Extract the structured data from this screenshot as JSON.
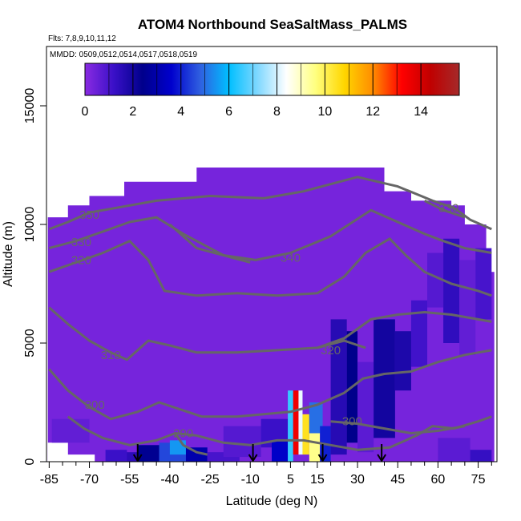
{
  "chart_data": {
    "type": "heatmap",
    "title": "ATOM4 Northbound SeaSaltMass_PALMS",
    "subtitle_flights": "Flts: 7,8,9,10,11,12",
    "subtitle_dates": "MMDD: 0509,0512,0514,0517,0518,0519",
    "xlabel": "Latitude (deg N)",
    "ylabel": "Altitude (m)",
    "x_ticks": [
      -85,
      -70,
      -55,
      -40,
      -25,
      -10,
      5,
      15,
      30,
      45,
      60,
      75
    ],
    "x_tick_labels": [
      "-85",
      "-70",
      "-55",
      "-40",
      "-25",
      "-10",
      "5",
      "15",
      "30",
      "45",
      "60",
      "75"
    ],
    "x_minor_ticks": [
      -80,
      -75,
      -65,
      -60,
      -50,
      -45,
      -35,
      -30,
      -20,
      -15,
      -5,
      0,
      10,
      20,
      25,
      35,
      40,
      50,
      55,
      65,
      70,
      80
    ],
    "y_ticks": [
      0,
      5000,
      10000,
      15000
    ],
    "y_tick_labels": [
      "0",
      "5000",
      "10000",
      "15000"
    ],
    "xlim": [
      -86,
      82
    ],
    "ylim": [
      0,
      17500
    ],
    "colorbar": {
      "ticks": [
        0,
        2,
        4,
        6,
        8,
        10,
        12,
        14
      ],
      "tick_labels": [
        "0",
        "2",
        "4",
        "6",
        "8",
        "10",
        "12",
        "14"
      ],
      "min": 0,
      "max": 15.6,
      "stops": [
        "#8a2be2",
        "#3a10c8",
        "#00008b",
        "#0000cd",
        "#2f5fe0",
        "#00bfff",
        "#80d8ff",
        "#ffffff",
        "#ffff80",
        "#ffd700",
        "#ff8c00",
        "#ff0000",
        "#c00000",
        "#a52a2a"
      ]
    },
    "background_value": 0.3,
    "domain_outline": [
      [
        -85.5,
        0
      ],
      [
        -85.5,
        10300
      ],
      [
        -78,
        10300
      ],
      [
        -78,
        10800
      ],
      [
        -70,
        10800
      ],
      [
        -70,
        11200
      ],
      [
        -57,
        11200
      ],
      [
        -57,
        11800
      ],
      [
        -30,
        11800
      ],
      [
        -30,
        12400
      ],
      [
        40,
        12400
      ],
      [
        40,
        11400
      ],
      [
        50,
        11400
      ],
      [
        50,
        11000
      ],
      [
        65,
        11000
      ],
      [
        65,
        10800
      ],
      [
        70,
        10800
      ],
      [
        70,
        10000
      ],
      [
        78,
        10000
      ],
      [
        78,
        8000
      ],
      [
        81,
        8000
      ],
      [
        81,
        0
      ]
    ],
    "missing_low_left": [
      [
        -85.5,
        0
      ],
      [
        -85.5,
        800
      ],
      [
        -78,
        800
      ],
      [
        -78,
        300
      ],
      [
        -68,
        300
      ],
      [
        -68,
        0
      ]
    ],
    "cells": [
      {
        "x": [
          -44,
          -34
        ],
        "y": [
          0,
          800
        ],
        "v": 4.5
      },
      {
        "x": [
          -40,
          -34
        ],
        "y": [
          300,
          900
        ],
        "v": 5.5
      },
      {
        "x": [
          -34,
          -26
        ],
        "y": [
          0,
          600
        ],
        "v": 3.0
      },
      {
        "x": [
          -58,
          -50
        ],
        "y": [
          0,
          400
        ],
        "v": 1.5
      },
      {
        "x": [
          -52,
          -44
        ],
        "y": [
          0,
          700
        ],
        "v": 2.5
      },
      {
        "x": [
          -26,
          -14
        ],
        "y": [
          0,
          400
        ],
        "v": 1.0
      },
      {
        "x": [
          -20,
          -6
        ],
        "y": [
          200,
          1500
        ],
        "v": 0.8
      },
      {
        "x": [
          -6,
          4
        ],
        "y": [
          600,
          1800
        ],
        "v": 1.2
      },
      {
        "x": [
          -2,
          4
        ],
        "y": [
          0,
          900
        ],
        "v": 3.5
      },
      {
        "x": [
          4,
          6
        ],
        "y": [
          0,
          3000
        ],
        "v": 6.5
      },
      {
        "x": [
          6,
          8
        ],
        "y": [
          300,
          3000
        ],
        "v": 13.5
      },
      {
        "x": [
          8,
          9.5
        ],
        "y": [
          300,
          3000
        ],
        "v": 8.2
      },
      {
        "x": [
          9.5,
          12
        ],
        "y": [
          300,
          2000
        ],
        "v": 10.5
      },
      {
        "x": [
          12,
          16
        ],
        "y": [
          0,
          1200
        ],
        "v": 9.5
      },
      {
        "x": [
          12,
          17
        ],
        "y": [
          1200,
          2500
        ],
        "v": 5.0
      },
      {
        "x": [
          16,
          20
        ],
        "y": [
          0,
          1500
        ],
        "v": 4.0
      },
      {
        "x": [
          20,
          26
        ],
        "y": [
          300,
          6000
        ],
        "v": 1.6
      },
      {
        "x": [
          26,
          30
        ],
        "y": [
          800,
          5500
        ],
        "v": 2.4
      },
      {
        "x": [
          30,
          36
        ],
        "y": [
          400,
          4200
        ],
        "v": 0.7
      },
      {
        "x": [
          36,
          44
        ],
        "y": [
          1000,
          6000
        ],
        "v": 2.0
      },
      {
        "x": [
          44,
          50
        ],
        "y": [
          3000,
          5500
        ],
        "v": 1.8
      },
      {
        "x": [
          50,
          56
        ],
        "y": [
          4000,
          6800
        ],
        "v": 1.1
      },
      {
        "x": [
          56,
          62
        ],
        "y": [
          6500,
          8800
        ],
        "v": 0.8
      },
      {
        "x": [
          62,
          68
        ],
        "y": [
          5000,
          9400
        ],
        "v": 1.4
      },
      {
        "x": [
          68,
          74
        ],
        "y": [
          4500,
          8500
        ],
        "v": 0.6
      },
      {
        "x": [
          74,
          80
        ],
        "y": [
          6000,
          9000
        ],
        "v": 1.0
      },
      {
        "x": [
          -64,
          -56
        ],
        "y": [
          0,
          500
        ],
        "v": 1.2
      },
      {
        "x": [
          -84,
          -70
        ],
        "y": [
          800,
          1800
        ],
        "v": 0.6
      },
      {
        "x": [
          60,
          72
        ],
        "y": [
          0,
          1000
        ],
        "v": 0.7
      },
      {
        "x": [
          72,
          80
        ],
        "y": [
          0,
          500
        ],
        "v": 1.3
      }
    ],
    "contours": [
      {
        "label": "350",
        "label_at": [
          -70,
          10400
        ],
        "points": [
          [
            -85,
            9800
          ],
          [
            -78,
            10100
          ],
          [
            -70,
            10500
          ],
          [
            -60,
            10700
          ],
          [
            -45,
            11000
          ],
          [
            -25,
            11200
          ],
          [
            -5,
            11100
          ],
          [
            10,
            11400
          ],
          [
            30,
            12000
          ],
          [
            45,
            11600
          ],
          [
            58,
            11000
          ],
          [
            66,
            10700
          ],
          [
            72,
            10200
          ],
          [
            80,
            9800
          ]
        ]
      },
      {
        "label": "330",
        "label_at": [
          -73,
          9250
        ],
        "points": [
          [
            -85,
            9000
          ],
          [
            -75,
            9300
          ],
          [
            -65,
            9700
          ],
          [
            -55,
            10100
          ],
          [
            -45,
            10300
          ],
          [
            -35,
            9600
          ],
          [
            -20,
            8700
          ],
          [
            -8,
            8500
          ],
          [
            5,
            8800
          ],
          [
            20,
            9500
          ],
          [
            35,
            10600
          ],
          [
            45,
            10100
          ],
          [
            55,
            9600
          ],
          [
            62,
            9300
          ],
          [
            70,
            9000
          ],
          [
            80,
            8800
          ]
        ]
      },
      {
        "label": "340",
        "label_at": [
          5,
          8600
        ],
        "points": [
          [
            -40,
            10000
          ],
          [
            -30,
            9000
          ],
          [
            -20,
            8700
          ],
          [
            -10,
            8400
          ]
        ]
      },
      {
        "label": "320",
        "label_at": [
          -73,
          8500
        ],
        "points": [
          [
            -85,
            8000
          ],
          [
            -75,
            8400
          ],
          [
            -65,
            8800
          ],
          [
            -55,
            9300
          ],
          [
            -48,
            8500
          ],
          [
            -42,
            7200
          ],
          [
            -30,
            7000
          ],
          [
            -15,
            7100
          ],
          [
            0,
            7000
          ],
          [
            15,
            7100
          ],
          [
            25,
            7800
          ],
          [
            33,
            8800
          ],
          [
            42,
            9400
          ],
          [
            48,
            8700
          ],
          [
            55,
            8000
          ],
          [
            65,
            7500
          ],
          [
            75,
            7200
          ],
          [
            80,
            7000
          ]
        ]
      },
      {
        "label": "330",
        "label_at": [
          64,
          10700
        ],
        "points": [
          [
            55,
            11000
          ],
          [
            62,
            10600
          ],
          [
            70,
            10300
          ]
        ]
      },
      {
        "label": "310",
        "label_at": [
          -62,
          4500
        ],
        "points": [
          [
            -85,
            6500
          ],
          [
            -78,
            5800
          ],
          [
            -70,
            5100
          ],
          [
            -62,
            4600
          ],
          [
            -56,
            4300
          ],
          [
            -48,
            5100
          ],
          [
            -40,
            4900
          ],
          [
            -30,
            4600
          ],
          [
            -15,
            4600
          ],
          [
            0,
            4700
          ],
          [
            15,
            4800
          ],
          [
            25,
            5200
          ],
          [
            35,
            6000
          ],
          [
            45,
            6200
          ],
          [
            55,
            6300
          ],
          [
            65,
            6200
          ],
          [
            75,
            6000
          ],
          [
            80,
            5900
          ]
        ]
      },
      {
        "label": "320",
        "label_at": [
          20,
          4700
        ],
        "points": [
          [
            15,
            4800
          ],
          [
            25,
            5100
          ],
          [
            33,
            4800
          ]
        ]
      },
      {
        "label": "300",
        "label_at": [
          -68,
          2400
        ],
        "points": [
          [
            -85,
            3900
          ],
          [
            -78,
            3000
          ],
          [
            -70,
            2300
          ],
          [
            -62,
            1800
          ],
          [
            -52,
            2100
          ],
          [
            -44,
            2500
          ],
          [
            -36,
            2200
          ],
          [
            -28,
            1900
          ],
          [
            -15,
            1900
          ],
          [
            -5,
            2000
          ],
          [
            5,
            2100
          ],
          [
            15,
            2400
          ],
          [
            25,
            2900
          ],
          [
            32,
            3500
          ],
          [
            40,
            3700
          ],
          [
            50,
            3800
          ],
          [
            60,
            4200
          ],
          [
            70,
            4500
          ],
          [
            80,
            4700
          ]
        ]
      },
      {
        "label": "300",
        "label_at": [
          28,
          1700
        ],
        "points": [
          [
            20,
            1700
          ],
          [
            30,
            1600
          ],
          [
            40,
            1400
          ],
          [
            50,
            1200
          ],
          [
            60,
            1300
          ],
          [
            70,
            1500
          ]
        ]
      },
      {
        "label": "290",
        "label_at": [
          -35,
          1200
        ],
        "points": [
          [
            -78,
            1900
          ],
          [
            -72,
            1400
          ],
          [
            -65,
            1000
          ],
          [
            -55,
            700
          ],
          [
            -45,
            900
          ],
          [
            -38,
            1200
          ],
          [
            -30,
            1100
          ],
          [
            -20,
            800
          ],
          [
            -10,
            700
          ],
          [
            0,
            900
          ],
          [
            10,
            900
          ],
          [
            20,
            700
          ],
          [
            30,
            500
          ],
          [
            42,
            600
          ],
          [
            52,
            1100
          ],
          [
            58,
            1500
          ],
          [
            66,
            1400
          ],
          [
            75,
            1700
          ],
          [
            80,
            1900
          ]
        ]
      },
      {
        "label": "",
        "label_at": [
          0,
          0
        ],
        "points": [
          [
            -38,
            1200
          ],
          [
            -35,
            700
          ],
          [
            -30,
            400
          ],
          [
            -26,
            300
          ]
        ]
      }
    ],
    "arrows_x": [
      -52,
      -9,
      17,
      39
    ]
  }
}
